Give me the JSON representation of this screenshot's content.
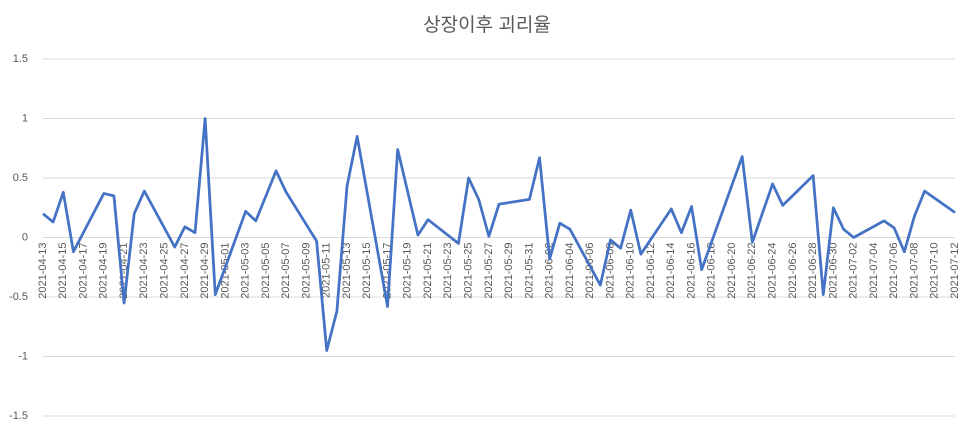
{
  "chart_data": {
    "type": "line",
    "title": "상장이후 괴리율",
    "x": [
      "2021-04-13",
      "2021-04-14",
      "2021-04-15",
      "2021-04-16",
      "2021-04-19",
      "2021-04-20",
      "2021-04-21",
      "2021-04-22",
      "2021-04-23",
      "2021-04-26",
      "2021-04-27",
      "2021-04-28",
      "2021-04-29",
      "2021-04-30",
      "2021-05-03",
      "2021-05-04",
      "2021-05-06",
      "2021-05-07",
      "2021-05-10",
      "2021-05-11",
      "2021-05-12",
      "2021-05-13",
      "2021-05-14",
      "2021-05-17",
      "2021-05-18",
      "2021-05-20",
      "2021-05-21",
      "2021-05-24",
      "2021-05-25",
      "2021-05-26",
      "2021-05-27",
      "2021-05-28",
      "2021-05-31",
      "2021-06-01",
      "2021-06-02",
      "2021-06-03",
      "2021-06-04",
      "2021-06-07",
      "2021-06-08",
      "2021-06-09",
      "2021-06-10",
      "2021-06-11",
      "2021-06-14",
      "2021-06-15",
      "2021-06-16",
      "2021-06-17",
      "2021-06-21",
      "2021-06-22",
      "2021-06-24",
      "2021-06-25",
      "2021-06-28",
      "2021-06-29",
      "2021-06-30",
      "2021-07-01",
      "2021-07-02",
      "2021-07-05",
      "2021-07-06",
      "2021-07-07",
      "2021-07-08",
      "2021-07-09",
      "2021-07-12"
    ],
    "series": [
      {
        "name": "괴리율",
        "color": "#4472c4",
        "values": [
          0.2,
          0.13,
          0.38,
          -0.12,
          0.37,
          0.35,
          -0.55,
          0.2,
          0.39,
          -0.08,
          0.09,
          0.04,
          1.0,
          -0.48,
          0.22,
          0.14,
          0.56,
          0.38,
          -0.03,
          -0.95,
          -0.62,
          0.43,
          0.85,
          -0.58,
          0.74,
          0.02,
          0.15,
          -0.05,
          0.5,
          0.32,
          0.01,
          0.28,
          0.32,
          0.67,
          -0.18,
          0.12,
          0.07,
          -0.4,
          -0.02,
          -0.09,
          0.23,
          -0.14,
          0.24,
          0.04,
          0.26,
          -0.27,
          0.68,
          -0.04,
          0.45,
          0.27,
          0.52,
          -0.48,
          0.25,
          0.07,
          0.0,
          0.14,
          0.08,
          -0.12,
          0.18,
          0.39,
          0.21
        ]
      }
    ],
    "xlim": [
      "2021-04-13",
      "2021-07-12"
    ],
    "xticks": [
      "2021-04-13",
      "2021-04-15",
      "2021-04-17",
      "2021-04-19",
      "2021-04-21",
      "2021-04-23",
      "2021-04-25",
      "2021-04-27",
      "2021-04-29",
      "2021-05-01",
      "2021-05-03",
      "2021-05-05",
      "2021-05-07",
      "2021-05-09",
      "2021-05-11",
      "2021-05-13",
      "2021-05-15",
      "2021-05-17",
      "2021-05-19",
      "2021-05-21",
      "2021-05-23",
      "2021-05-25",
      "2021-05-27",
      "2021-05-29",
      "2021-05-31",
      "2021-06-02",
      "2021-06-04",
      "2021-06-06",
      "2021-06-08",
      "2021-06-10",
      "2021-06-12",
      "2021-06-14",
      "2021-06-16",
      "2021-06-18",
      "2021-06-20",
      "2021-06-22",
      "2021-06-24",
      "2021-06-26",
      "2021-06-28",
      "2021-06-30",
      "2021-07-02",
      "2021-07-04",
      "2021-07-06",
      "2021-07-08",
      "2021-07-10",
      "2021-07-12"
    ],
    "ylim": [
      -1.5,
      1.5
    ],
    "yticks": [
      -1.5,
      -1,
      -0.5,
      0,
      0.5,
      1,
      1.5
    ],
    "grid": true
  }
}
